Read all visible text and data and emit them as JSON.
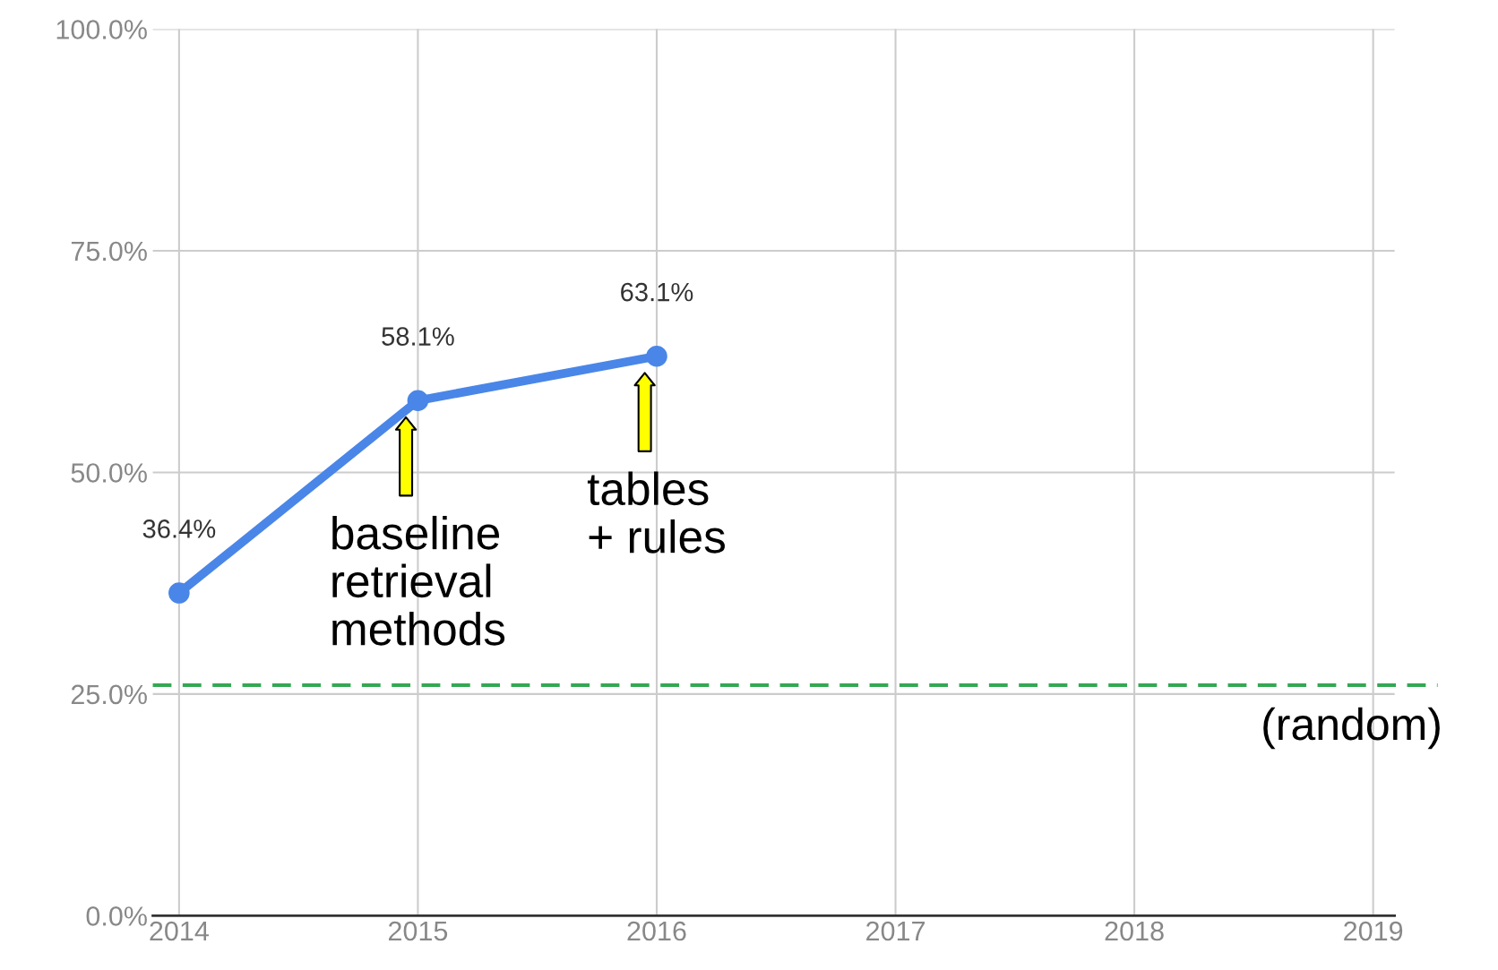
{
  "chart_data": {
    "type": "line",
    "x": [
      2014,
      2015,
      2016
    ],
    "series": [
      {
        "color": "#4a86e8",
        "values": [
          36.4,
          58.1,
          63.1
        ]
      }
    ],
    "value_labels": [
      "36.4%",
      "58.1%",
      "63.1%"
    ],
    "xlim": [
      2013.89,
      2019.09
    ],
    "xticks": [
      2014,
      2015,
      2016,
      2017,
      2018,
      2019
    ],
    "ylim": [
      0,
      100
    ],
    "yticks": [
      {
        "value": 0,
        "label": "0.0%"
      },
      {
        "value": 25,
        "label": "25.0%"
      },
      {
        "value": 50,
        "label": "50.0%"
      },
      {
        "value": 75,
        "label": "75.0%"
      },
      {
        "value": 100,
        "label": "100.0%"
      }
    ],
    "grid": true,
    "marker": "circle",
    "line_style": "solid",
    "ref_lines": [
      {
        "axis": "y",
        "value": 26,
        "label": "(random)",
        "color": "#34a853",
        "line_style": "dashed"
      }
    ],
    "annotations": [
      {
        "text": "baseline\nretrieval\nmethods",
        "x": 2015,
        "y": 58.1
      },
      {
        "text": "tables\n+ rules",
        "x": 2016,
        "y": 63.1
      }
    ]
  }
}
